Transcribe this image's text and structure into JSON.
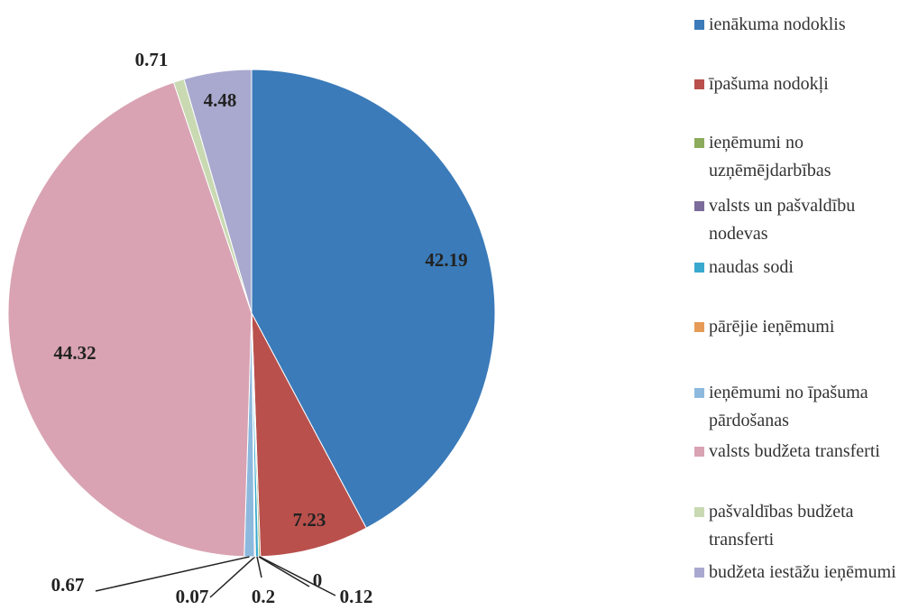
{
  "chart_data": {
    "type": "pie",
    "categories": [
      "ienākuma nodoklis",
      "īpašuma nodokļi",
      "ieņēmumi no uzņēmējdarbības",
      "valsts un pašvaldību nodevas",
      "naudas sodi",
      "pārējie ieņēmumi",
      "ieņēmumi no īpašuma pārdošanas",
      "valsts budžeta transferti",
      "pašvaldības budžeta transferti",
      "budžeta iestāžu ieņēmumi"
    ],
    "values": [
      42.19,
      7.23,
      0.12,
      0,
      0.2,
      0.07,
      0.67,
      44.32,
      0.71,
      4.48
    ],
    "colors": [
      "#3b7bb9",
      "#b9504c",
      "#8cab5c",
      "#7b6c9b",
      "#3aa9cf",
      "#e69a57",
      "#8db9de",
      "#d9a3b3",
      "#c9d9b2",
      "#a9a9cf"
    ],
    "legend": "right"
  }
}
